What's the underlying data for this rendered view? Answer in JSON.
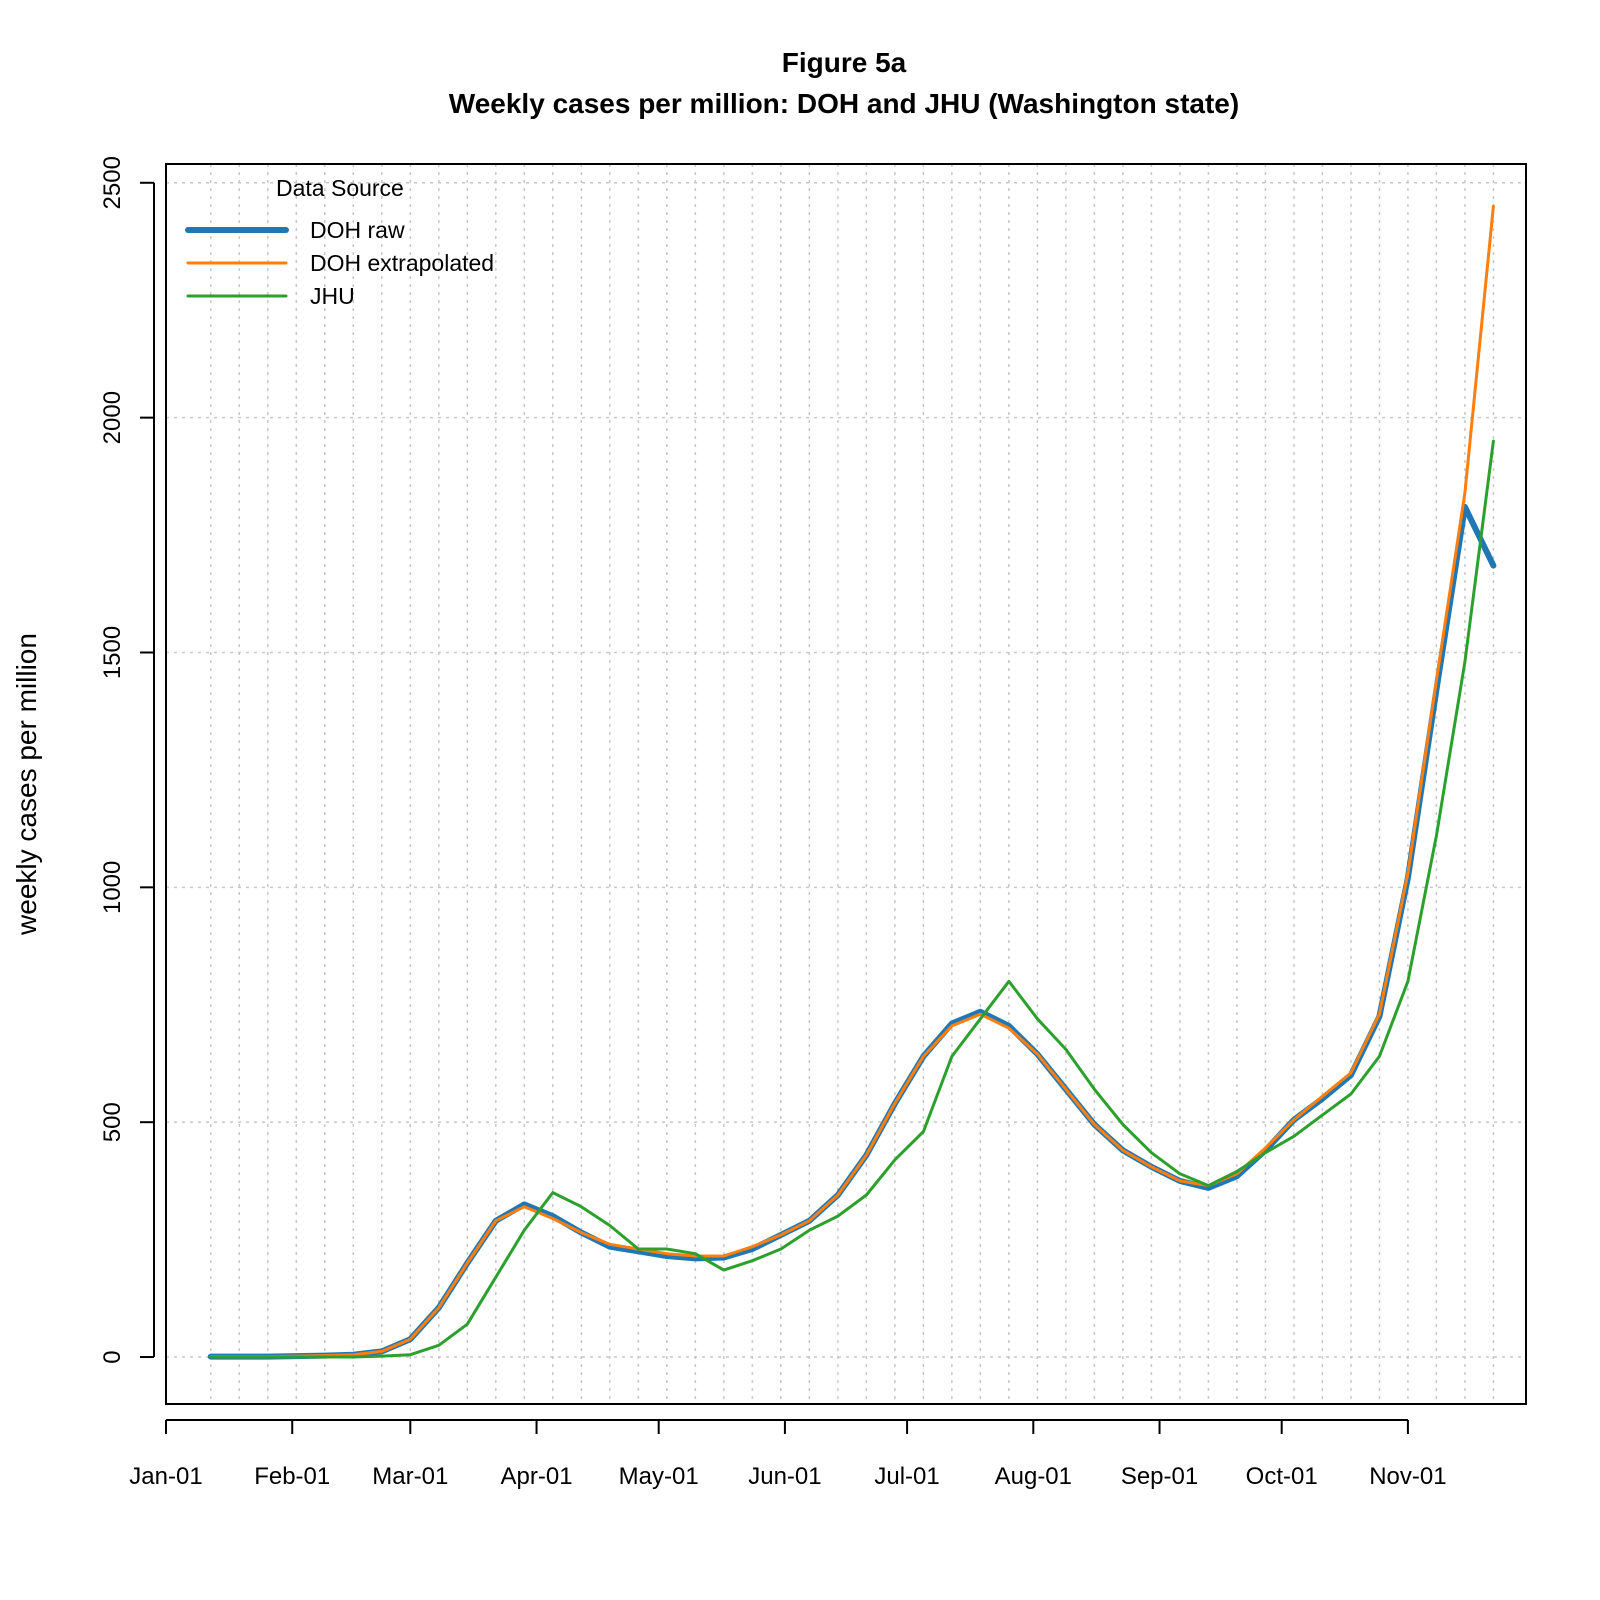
{
  "chart_data": {
    "type": "line",
    "title": "Figure 5a",
    "subtitle": "Weekly cases per million: DOH and JHU (Washington state)",
    "xlabel": "",
    "ylabel": "weekly cases per million",
    "x_tick_labels": [
      "Jan-01",
      "Feb-01",
      "Mar-01",
      "Apr-01",
      "May-01",
      "Jun-01",
      "Jul-01",
      "Aug-01",
      "Sep-01",
      "Oct-01",
      "Nov-01"
    ],
    "y_tick_labels": [
      "0",
      "500",
      "1000",
      "1500",
      "2000",
      "2500"
    ],
    "xlim": [
      "2020-01-01",
      "2020-11-30"
    ],
    "ylim": [
      -100,
      2540
    ],
    "grid": true,
    "legend": {
      "title": "Data Source",
      "position": "top-left",
      "entries": [
        "DOH raw",
        "DOH extrapolated",
        "JHU"
      ]
    },
    "x": [
      "2020-01-12",
      "2020-01-19",
      "2020-01-26",
      "2020-02-02",
      "2020-02-09",
      "2020-02-16",
      "2020-02-23",
      "2020-03-01",
      "2020-03-08",
      "2020-03-15",
      "2020-03-22",
      "2020-03-29",
      "2020-04-05",
      "2020-04-12",
      "2020-04-19",
      "2020-04-26",
      "2020-05-03",
      "2020-05-10",
      "2020-05-17",
      "2020-05-24",
      "2020-05-31",
      "2020-06-07",
      "2020-06-14",
      "2020-06-21",
      "2020-06-28",
      "2020-07-05",
      "2020-07-12",
      "2020-07-19",
      "2020-07-26",
      "2020-08-02",
      "2020-08-09",
      "2020-08-16",
      "2020-08-23",
      "2020-08-30",
      "2020-09-06",
      "2020-09-13",
      "2020-09-20",
      "2020-09-27",
      "2020-10-04",
      "2020-10-11",
      "2020-10-18",
      "2020-10-25",
      "2020-11-01",
      "2020-11-08",
      "2020-11-15",
      "2020-11-22"
    ],
    "series": [
      {
        "name": "DOH raw",
        "color": "#1f77b4",
        "values": [
          1,
          1,
          1,
          2,
          3,
          5,
          12,
          38,
          105,
          200,
          290,
          325,
          300,
          265,
          235,
          225,
          215,
          210,
          212,
          230,
          260,
          290,
          345,
          430,
          540,
          640,
          710,
          735,
          705,
          645,
          570,
          495,
          440,
          405,
          375,
          360,
          385,
          440,
          505,
          550,
          600,
          725,
          1020,
          1420,
          1810,
          1685
        ]
      },
      {
        "name": "DOH extrapolated",
        "color": "#ff7f0e",
        "values": [
          1,
          1,
          1,
          2,
          3,
          5,
          12,
          38,
          105,
          200,
          290,
          320,
          295,
          265,
          240,
          230,
          220,
          215,
          215,
          235,
          260,
          290,
          345,
          430,
          540,
          640,
          705,
          730,
          700,
          645,
          570,
          495,
          440,
          405,
          375,
          365,
          390,
          445,
          505,
          555,
          605,
          730,
          1030,
          1440,
          1840,
          2450
        ]
      },
      {
        "name": "JHU",
        "color": "#2ca02c",
        "values": [
          0,
          0,
          0,
          0,
          0,
          0,
          2,
          5,
          25,
          70,
          170,
          270,
          350,
          320,
          280,
          230,
          230,
          220,
          185,
          205,
          230,
          270,
          300,
          345,
          420,
          480,
          640,
          720,
          800,
          720,
          655,
          570,
          495,
          435,
          390,
          365,
          395,
          435,
          470,
          515,
          560,
          640,
          800,
          1110,
          1480,
          1950
        ]
      }
    ]
  }
}
